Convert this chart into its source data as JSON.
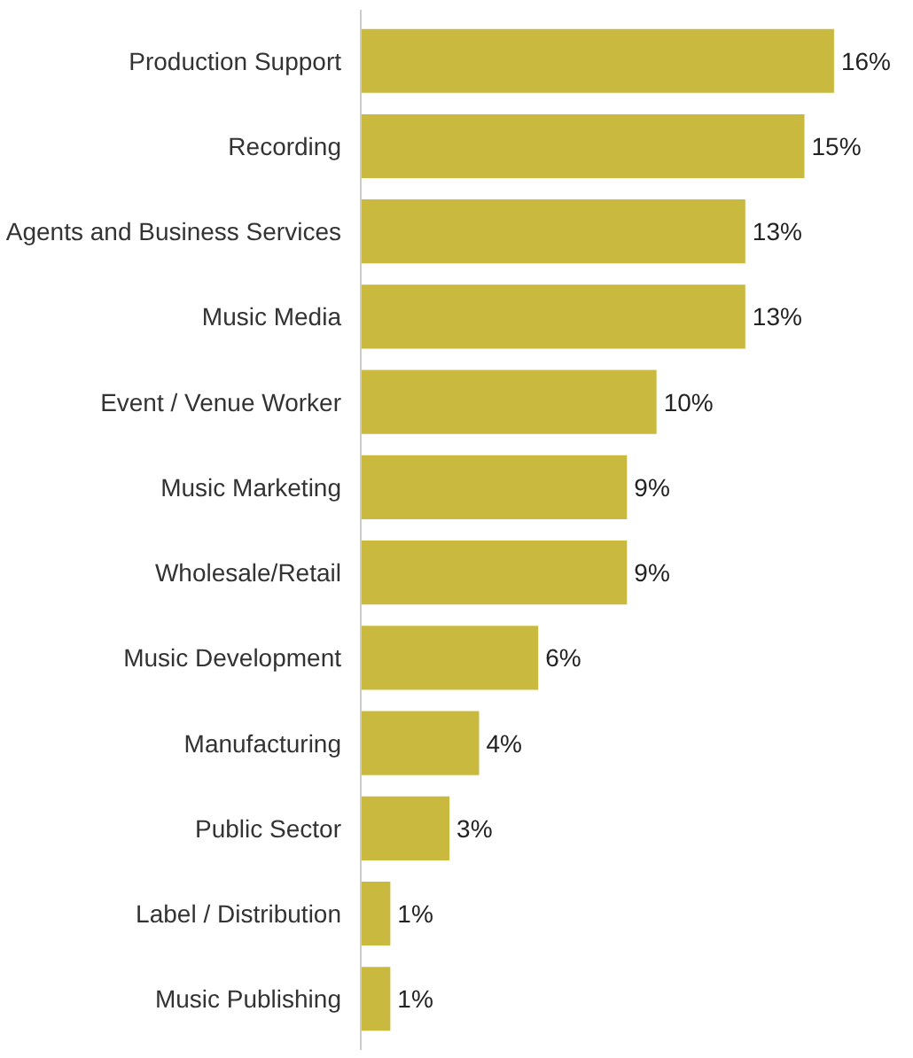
{
  "chart_data": {
    "type": "bar",
    "orientation": "horizontal",
    "categories": [
      "Production Support",
      "Recording",
      "Agents and Business Services",
      "Music Media",
      "Event / Venue Worker",
      "Music Marketing",
      "Wholesale/Retail",
      "Music Development",
      "Manufacturing",
      "Public Sector",
      "Label / Distribution",
      "Music Publishing"
    ],
    "values": [
      16,
      15,
      13,
      13,
      10,
      9,
      9,
      6,
      4,
      3,
      1,
      1
    ],
    "value_labels": [
      "16%",
      "15%",
      "13%",
      "13%",
      "10%",
      "9%",
      "9%",
      "6%",
      "4%",
      "3%",
      "1%",
      "1%"
    ],
    "color": "#c9b93f"
  }
}
